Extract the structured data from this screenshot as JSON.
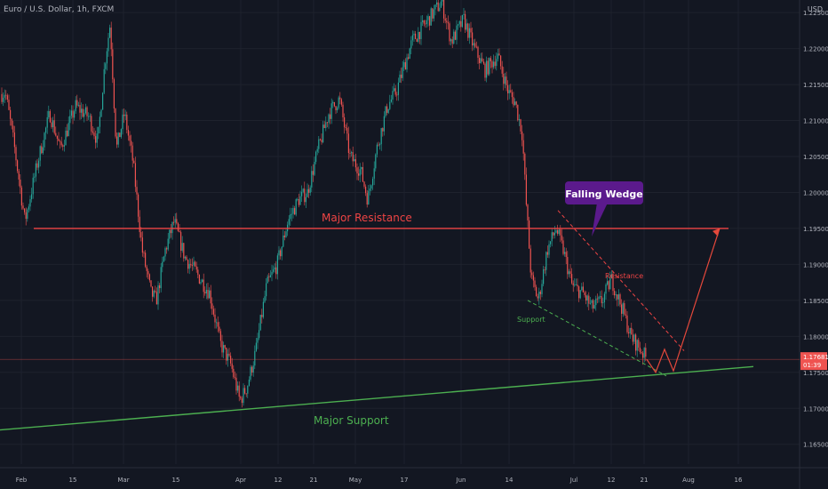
{
  "symbol_title": "Euro / U.S. Dollar, 1h, FXCM",
  "currency_label": "USD",
  "colors": {
    "background": "#131722",
    "grid": "#1e222d",
    "axis_text": "#b2b5be",
    "candle_up": "#26a69a",
    "candle_down": "#ef5350",
    "resistance_line": "#ef4444",
    "support_line": "#4caf50",
    "projection_line": "#e5483b",
    "callout_fill": "#5b1a8c",
    "price_tag": "#ef5350"
  },
  "chart_data": {
    "type": "candlestick",
    "y_axis": {
      "ticks": [
        "1.22500",
        "1.22000",
        "1.21500",
        "1.21000",
        "1.20500",
        "1.20000",
        "1.19500",
        "1.19000",
        "1.18500",
        "1.18000",
        "1.17500",
        "1.17000",
        "1.16500"
      ],
      "range": [
        1.162,
        1.2265
      ]
    },
    "x_axis": {
      "ticks": [
        "Feb",
        "15",
        "Mar",
        "15",
        "Apr",
        "12",
        "21",
        "May",
        "17",
        "Jun",
        "14",
        "Jul",
        "12",
        "21",
        "Aug",
        "16"
      ]
    },
    "price_path": [
      [
        0,
        1.2135
      ],
      [
        6,
        1.214
      ],
      [
        16,
        1.2065
      ],
      [
        28,
        1.196
      ],
      [
        42,
        1.204
      ],
      [
        56,
        1.211
      ],
      [
        68,
        1.206
      ],
      [
        85,
        1.212
      ],
      [
        100,
        1.2105
      ],
      [
        110,
        1.207
      ],
      [
        118,
        1.218
      ],
      [
        124,
        1.2235
      ],
      [
        131,
        1.206
      ],
      [
        140,
        1.211
      ],
      [
        150,
        1.204
      ],
      [
        160,
        1.192
      ],
      [
        170,
        1.186
      ],
      [
        176,
        1.185
      ],
      [
        186,
        1.192
      ],
      [
        196,
        1.196
      ],
      [
        208,
        1.191
      ],
      [
        220,
        1.189
      ],
      [
        236,
        1.186
      ],
      [
        248,
        1.179
      ],
      [
        260,
        1.176
      ],
      [
        270,
        1.171
      ],
      [
        278,
        1.173
      ],
      [
        288,
        1.178
      ],
      [
        300,
        1.187
      ],
      [
        312,
        1.19
      ],
      [
        324,
        1.196
      ],
      [
        336,
        1.199
      ],
      [
        346,
        1.2
      ],
      [
        358,
        1.206
      ],
      [
        370,
        1.211
      ],
      [
        382,
        1.213
      ],
      [
        394,
        1.205
      ],
      [
        406,
        1.203
      ],
      [
        414,
        1.199
      ],
      [
        424,
        1.206
      ],
      [
        436,
        1.212
      ],
      [
        446,
        1.214
      ],
      [
        456,
        1.218
      ],
      [
        464,
        1.221
      ],
      [
        476,
        1.223
      ],
      [
        488,
        1.225
      ],
      [
        497,
        1.2265
      ],
      [
        508,
        1.221
      ],
      [
        522,
        1.224
      ],
      [
        534,
        1.22
      ],
      [
        546,
        1.217
      ],
      [
        560,
        1.219
      ],
      [
        572,
        1.214
      ],
      [
        580,
        1.2125
      ],
      [
        588,
        1.208
      ],
      [
        592,
        1.199
      ],
      [
        598,
        1.188
      ],
      [
        606,
        1.185
      ],
      [
        616,
        1.192
      ],
      [
        626,
        1.195
      ],
      [
        634,
        1.192
      ],
      [
        644,
        1.187
      ],
      [
        656,
        1.186
      ],
      [
        666,
        1.184
      ],
      [
        678,
        1.185
      ],
      [
        688,
        1.188
      ],
      [
        700,
        1.184
      ],
      [
        710,
        1.18
      ],
      [
        722,
        1.178
      ],
      [
        728,
        1.1768
      ]
    ],
    "horizontal_levels": [
      {
        "label": "Major Resistance",
        "price": 1.195
      },
      {
        "label": "",
        "price": 1.1768
      }
    ],
    "trendlines": [
      {
        "label": "Major Support",
        "from": [
          0,
          1.167
        ],
        "to": [
          848,
          1.1758
        ]
      },
      {
        "label": "Resistance",
        "from": [
          628,
          1.1975
        ],
        "to": [
          770,
          1.178
        ]
      },
      {
        "label": "Support",
        "from": [
          594,
          1.185
        ],
        "to": [
          750,
          1.1745
        ]
      }
    ],
    "projection_path": [
      [
        728,
        1.1768
      ],
      [
        738,
        1.175
      ],
      [
        748,
        1.1782
      ],
      [
        758,
        1.1752
      ],
      [
        810,
        1.195
      ]
    ],
    "callout": {
      "label": "Falling Wedge"
    },
    "current_price": {
      "label": "1.17681",
      "timer": "01:39",
      "price": 1.17681
    }
  }
}
